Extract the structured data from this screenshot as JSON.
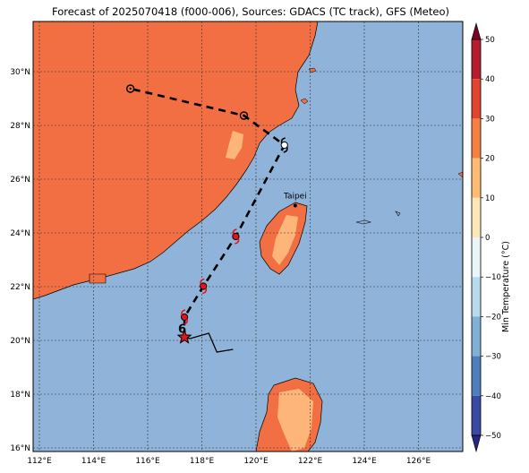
{
  "title": "Forecast of 2025070418 (f000-006), Sources: GDACS (TC track), GFS (Meteo)",
  "map": {
    "lon_range": [
      111.8,
      127.7
    ],
    "lat_range": [
      15.9,
      31.9
    ],
    "x_ticks": [
      "112°E",
      "114°E",
      "116°E",
      "118°E",
      "120°E",
      "122°E",
      "124°E",
      "126°E"
    ],
    "y_ticks": [
      "16°N",
      "18°N",
      "20°N",
      "22°N",
      "24°N",
      "26°N",
      "28°N",
      "30°N"
    ],
    "gridlines": true,
    "ocean_color": "#8fb3d9",
    "land_color": "#f16f43",
    "warm_land_color": "#fdb57a",
    "city_label": "Taipei",
    "city_lon": 121.5,
    "city_lat": 25.05
  },
  "track": {
    "points": [
      {
        "lon": 117.4,
        "lat": 20.15,
        "symbol": "star"
      },
      {
        "lon": 117.4,
        "lat": 20.9,
        "symbol": "tc-red"
      },
      {
        "lon": 118.1,
        "lat": 22.05,
        "symbol": "tc-red"
      },
      {
        "lon": 119.3,
        "lat": 23.9,
        "symbol": "tc-red"
      },
      {
        "lon": 121.1,
        "lat": 27.3,
        "symbol": "tc-black"
      },
      {
        "lon": 119.6,
        "lat": 28.4,
        "symbol": "circle"
      },
      {
        "lon": 115.4,
        "lat": 29.4,
        "symbol": "circle"
      }
    ],
    "history": [
      {
        "lon": 117.6,
        "lat": 20.1
      },
      {
        "lon": 118.3,
        "lat": 20.3
      },
      {
        "lon": 118.6,
        "lat": 19.6
      },
      {
        "lon": 119.2,
        "lat": 19.7
      }
    ],
    "start_marker_label": "6"
  },
  "colorbar": {
    "label": "Min Temperature (°C)",
    "ticks": [
      "50",
      "40",
      "30",
      "20",
      "10",
      "0",
      "−10",
      "−20",
      "−30",
      "−40",
      "−50"
    ],
    "colors": [
      "#7a0224",
      "#b51c2e",
      "#e1442f",
      "#f58042",
      "#fdbb74",
      "#fde7b8",
      "#e9f5f9",
      "#b7dbeb",
      "#7eb1d5",
      "#4d7fbd",
      "#3a4aa2",
      "#282582"
    ]
  }
}
